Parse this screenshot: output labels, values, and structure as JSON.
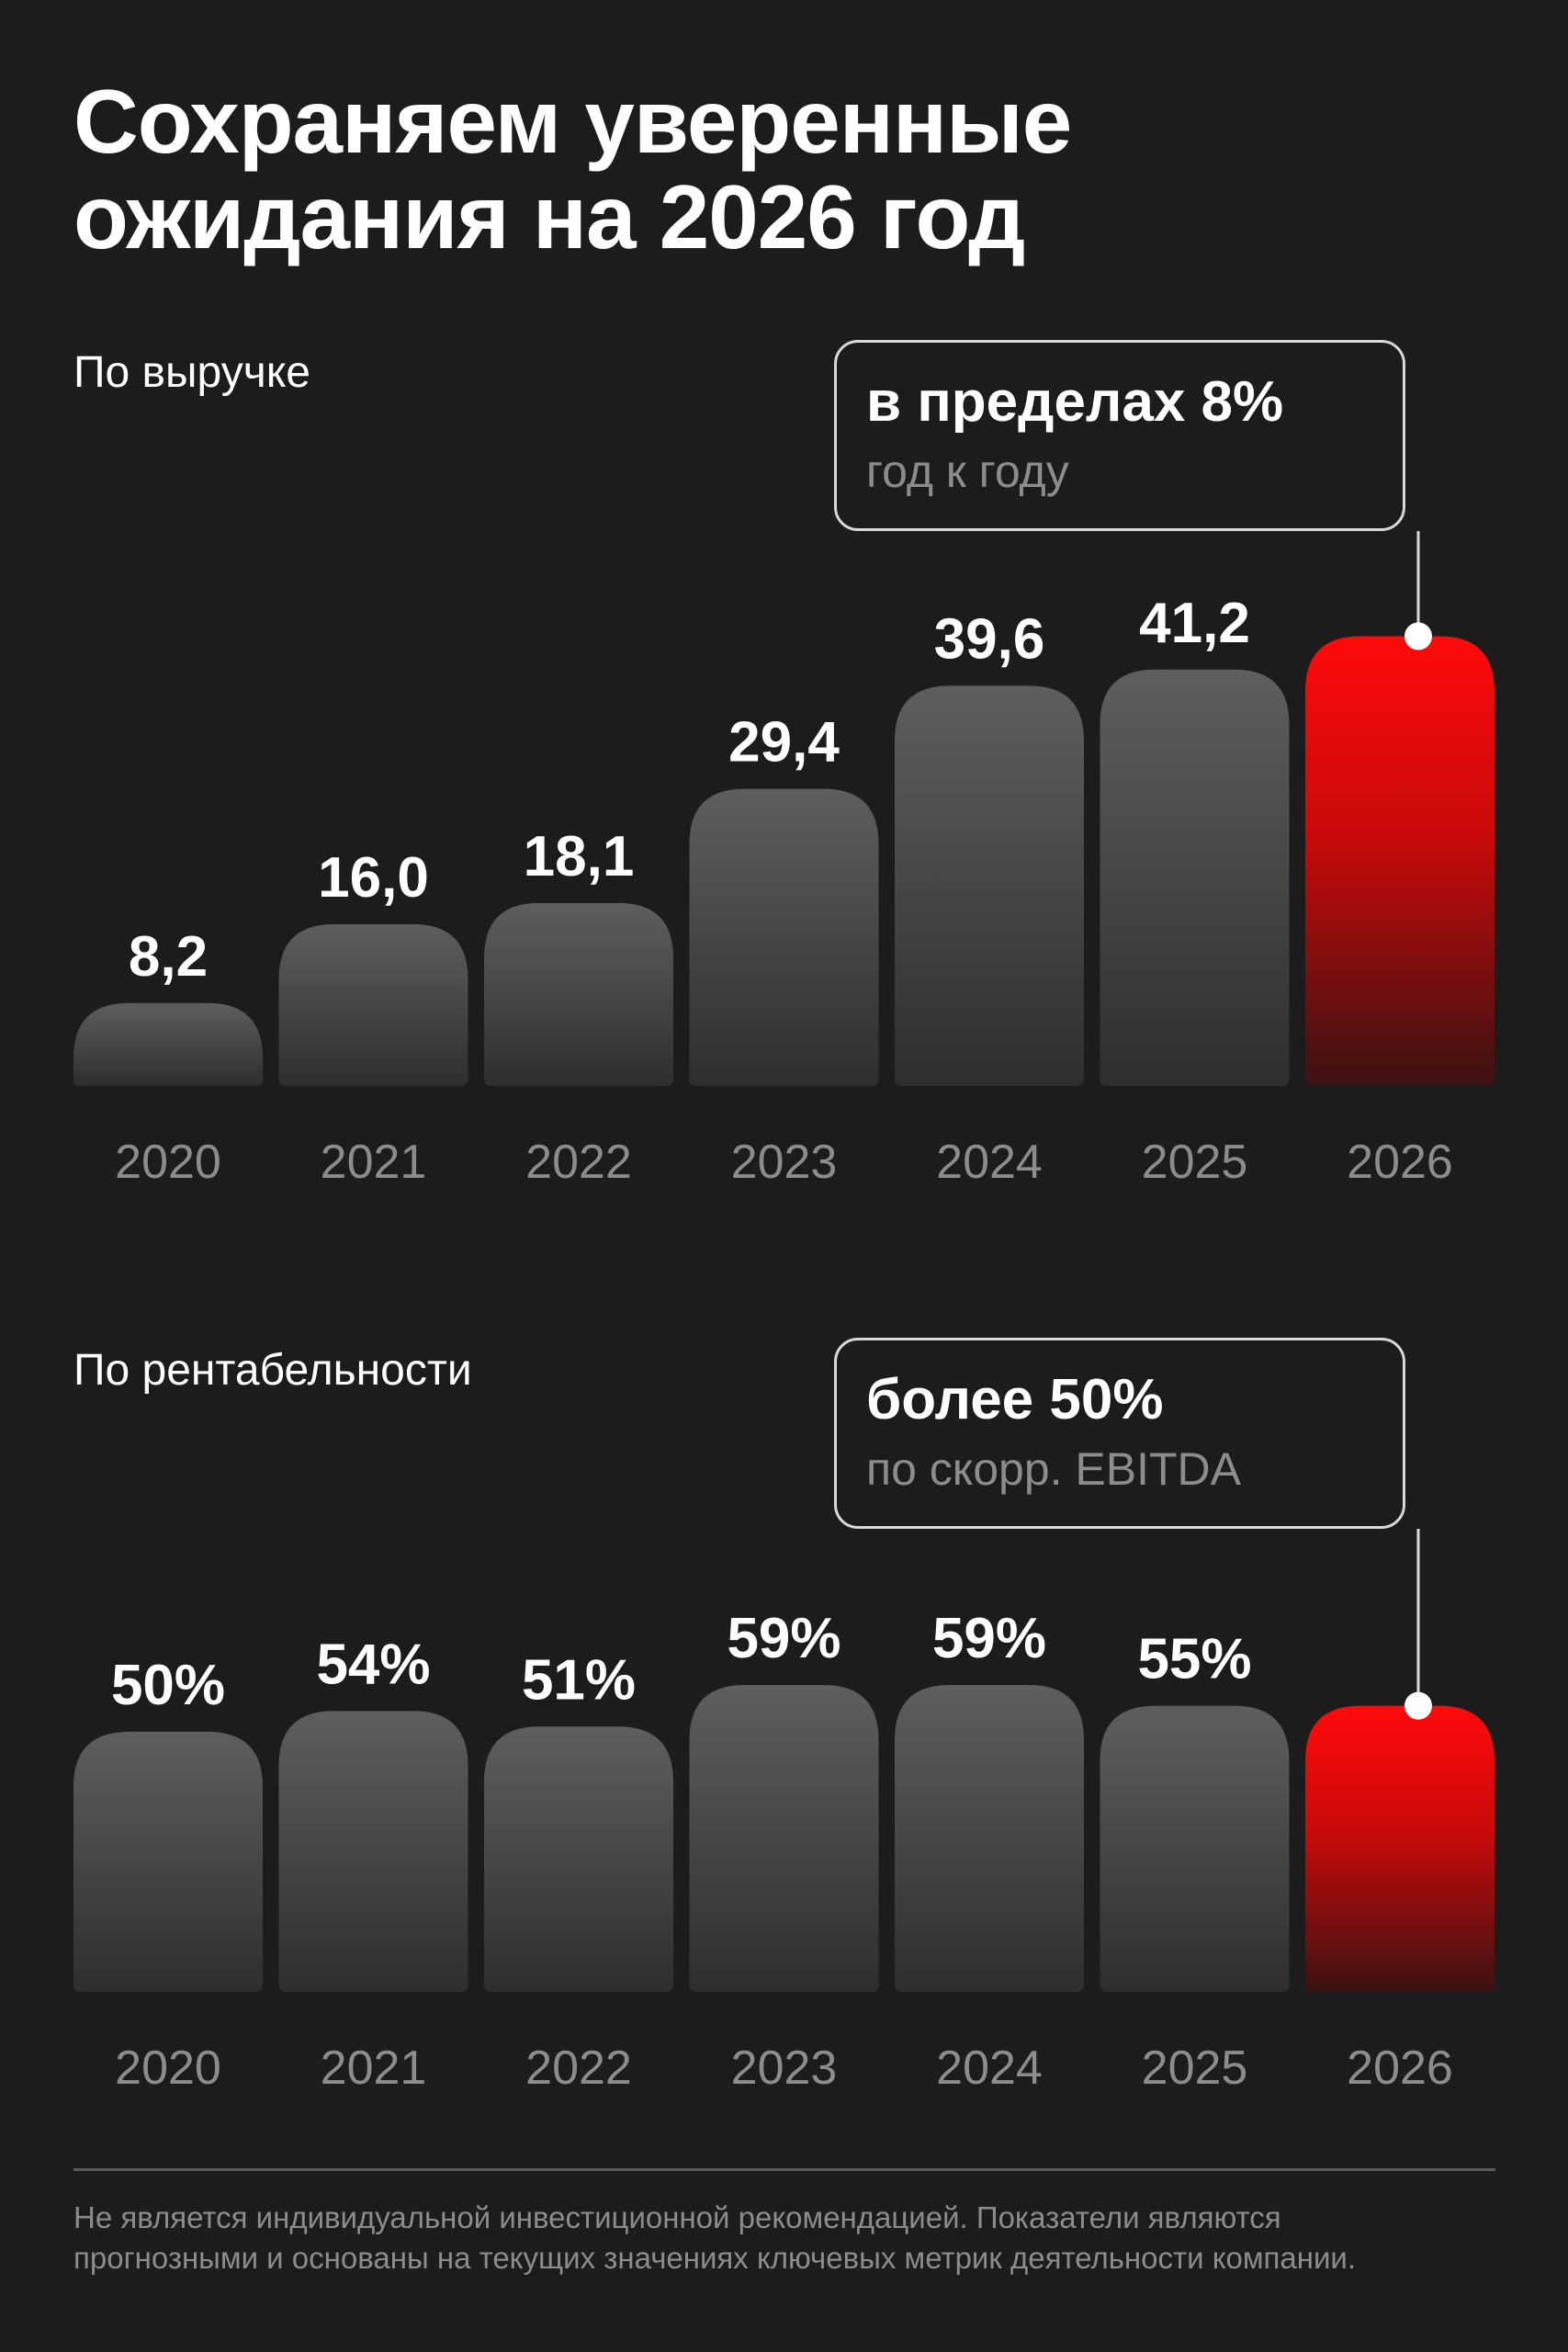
{
  "title": {
    "line1": "Сохраняем уверенные",
    "line2": "ожидания на 2026 год"
  },
  "colors": {
    "background": "#1c1c1c",
    "bar_gray": "#5e5e5e",
    "bar_highlight": "#ff0a0a",
    "axis_label": "#8c8c8c"
  },
  "revenue": {
    "label": "По выручке",
    "callout_main": "в пределах 8%",
    "callout_sub": "год к году"
  },
  "margin": {
    "label": "По рентабельности",
    "callout_main": "более 50%",
    "callout_sub": "по скорр. EBITDA"
  },
  "chart_data": [
    {
      "type": "bar",
      "categories": [
        "2020",
        "2021",
        "2022",
        "2023",
        "2024",
        "2025",
        "2026"
      ],
      "values": [
        8.2,
        16.0,
        18.1,
        29.4,
        39.6,
        41.2,
        44.5
      ],
      "labels": [
        "8,2",
        "16,0",
        "18,1",
        "29,4",
        "39,6",
        "41,2",
        ""
      ],
      "title": "По выручке",
      "highlight_index": 6,
      "ylim": [
        0,
        45
      ]
    },
    {
      "type": "bar",
      "categories": [
        "2020",
        "2021",
        "2022",
        "2023",
        "2024",
        "2025",
        "2026"
      ],
      "values": [
        50,
        54,
        51,
        59,
        59,
        55,
        55
      ],
      "labels": [
        "50%",
        "54%",
        "51%",
        "59%",
        "59%",
        "55%",
        ""
      ],
      "title": "По рентабельности",
      "highlight_index": 6,
      "ylim": [
        0,
        62
      ]
    }
  ],
  "footer": {
    "line1": "Не является индивидуальной инвестиционной рекомендацией. Показатели являются",
    "line2": "прогнозными и основаны на текущих значениях ключевых метрик деятельности компании."
  }
}
